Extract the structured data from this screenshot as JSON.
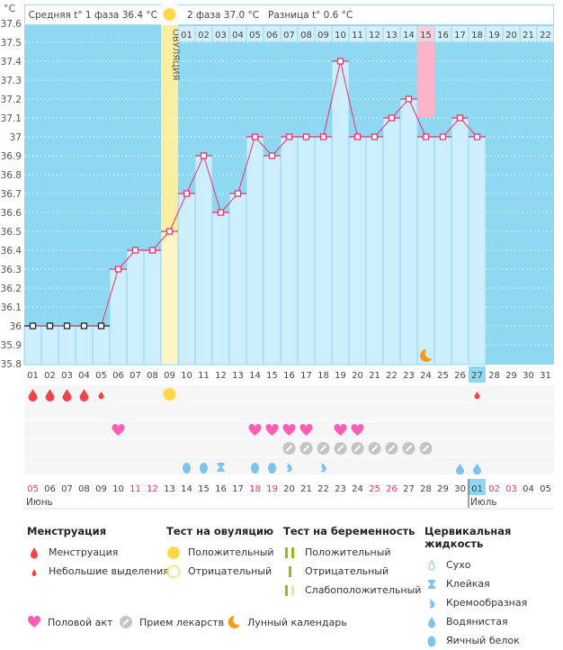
{
  "header": {
    "unit": "°C",
    "phase1": "Средняя t° 1 фаза 36.4 °C",
    "phase2": "2 фаза 37.0 °C",
    "diff": "Разница t° 0.6 °C",
    "ovulation_label": "ОВУЛЯЦИЯ"
  },
  "colors": {
    "bg": "#8fd8f2",
    "fill": "#cdeefc",
    "line": "#f0306a",
    "ovulation": "#fbeea0",
    "highlight": "#ffb3c8"
  },
  "chart_data": {
    "type": "line",
    "ylim": [
      35.8,
      37.6
    ],
    "yticks": [
      "37.6",
      "37.5",
      "37.4",
      "37.3",
      "37.2",
      "37.1",
      "37",
      "36.9",
      "36.8",
      "36.7",
      "36.6",
      "36.5",
      "36.4",
      "36.3",
      "36.2",
      "36.1",
      "36",
      "35.9",
      "35.8"
    ],
    "cycle_days": [
      "01",
      "02",
      "03",
      "04",
      "05",
      "06",
      "07",
      "08",
      "09",
      "10",
      "11",
      "12",
      "13",
      "14",
      "15",
      "16",
      "17",
      "18",
      "19",
      "20",
      "21",
      "22",
      "23",
      "24",
      "25",
      "26",
      "27",
      "28",
      "29",
      "30",
      "31"
    ],
    "temperatures": [
      36.0,
      36.0,
      36.0,
      36.0,
      36.0,
      36.3,
      36.4,
      36.4,
      36.5,
      36.7,
      36.9,
      36.6,
      36.7,
      37.0,
      36.9,
      37.0,
      37.0,
      37.0,
      37.4,
      37.0,
      37.0,
      37.1,
      37.2,
      37.0,
      37.0,
      37.1,
      37.0
    ],
    "ovulation_day": 9,
    "post_ovulation_days": [
      "01",
      "02",
      "03",
      "04",
      "05",
      "06",
      "07",
      "08",
      "09",
      "10",
      "11",
      "12",
      "13",
      "14",
      "15",
      "16",
      "17",
      "18",
      "19",
      "20",
      "21",
      "22"
    ],
    "highlight_post_day": 15,
    "today": 27,
    "moon_day": 24
  },
  "rows": {
    "menstruation": {
      "1": "heavy",
      "2": "heavy",
      "3": "heavy",
      "4": "heavy",
      "5": "light",
      "27": "light"
    },
    "ovulation_test": {
      "9": "positive"
    },
    "intercourse": [
      6,
      14,
      15,
      16,
      17,
      19,
      20
    ],
    "medication": [
      16,
      17,
      18,
      19,
      20,
      21,
      22,
      23,
      24
    ],
    "cervical": {
      "10": "egg",
      "11": "egg",
      "12": "sticky",
      "14": "egg",
      "15": "egg",
      "16": "creamy",
      "18": "creamy",
      "26": "watery",
      "27": "watery"
    }
  },
  "calendar": {
    "dates": [
      "05",
      "06",
      "07",
      "08",
      "09",
      "10",
      "11",
      "12",
      "13",
      "14",
      "15",
      "16",
      "17",
      "18",
      "19",
      "20",
      "21",
      "22",
      "23",
      "24",
      "25",
      "26",
      "27",
      "28",
      "29",
      "30",
      "01",
      "02",
      "03",
      "04",
      "05"
    ],
    "weekends": [
      1,
      7,
      8,
      14,
      15,
      21,
      22,
      28,
      29
    ],
    "months": [
      {
        "day": 1,
        "label": "Июнь"
      },
      {
        "day": 27,
        "label": "Июль"
      }
    ]
  },
  "legend": {
    "menstruation": {
      "title": "Менструация",
      "items": [
        "Менструация",
        "Небольшие выделения"
      ]
    },
    "ovulation": {
      "title": "Тест на овуляцию",
      "items": [
        "Положительный",
        "Отрицательный"
      ]
    },
    "pregnancy": {
      "title": "Тест на беременность",
      "items": [
        "Положительный",
        "Отрицательный",
        "Слабоположительный"
      ]
    },
    "cervical": {
      "title": "Цервикальная жидкость",
      "items": [
        "Сухо",
        "Клейкая",
        "Кремообразная",
        "Водянистая",
        "Яичный белок"
      ]
    },
    "bottom": [
      "Половой акт",
      "Прием лекарств",
      "Лунный календарь"
    ]
  }
}
